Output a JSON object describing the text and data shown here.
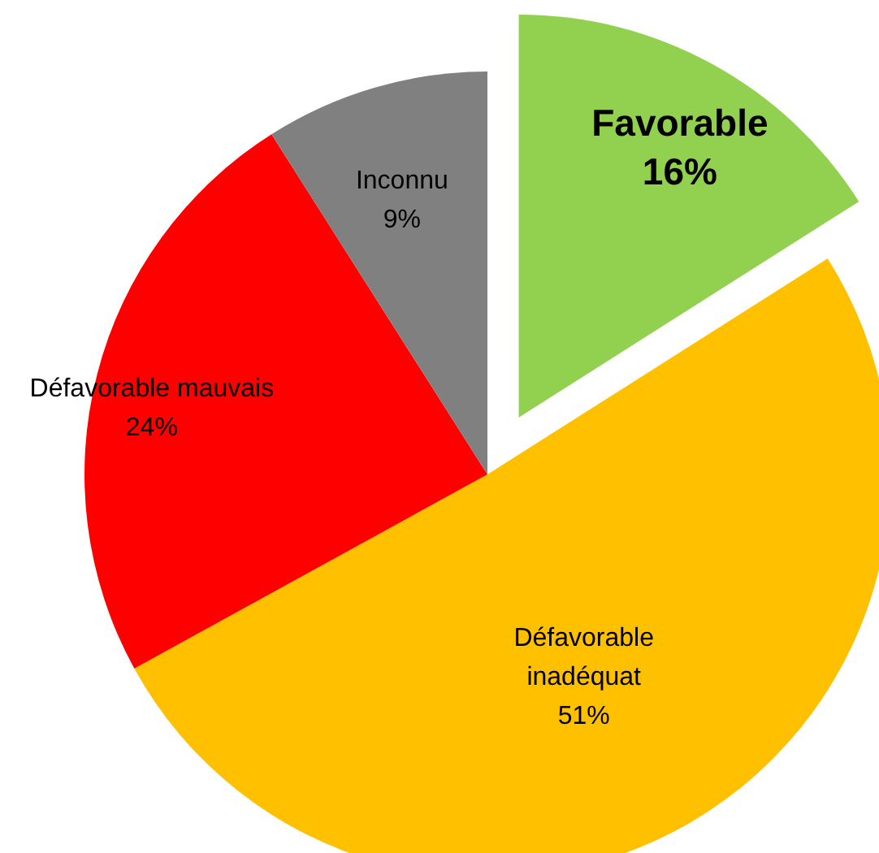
{
  "chart_data": {
    "type": "pie",
    "categories": [
      "Favorable",
      "Défavorable inadéquat",
      "Défavorable mauvais",
      "Inconnu"
    ],
    "values": [
      16,
      51,
      24,
      9
    ],
    "colors": [
      "#92d050",
      "#ffc000",
      "#ff0000",
      "#808080"
    ],
    "value_labels": [
      "16%",
      "51%",
      "24%",
      "9%"
    ]
  }
}
